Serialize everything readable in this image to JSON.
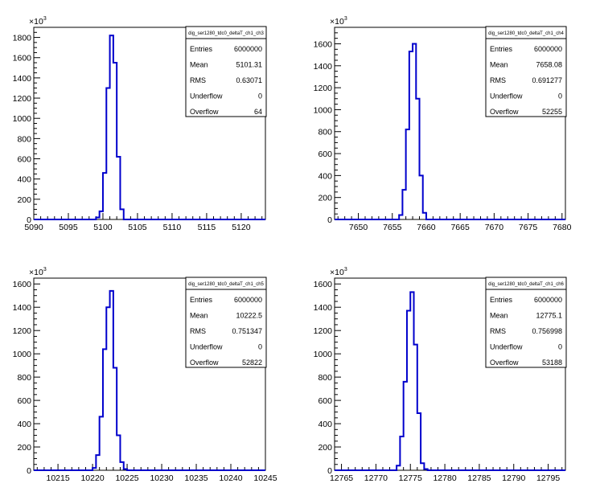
{
  "chart_data": [
    {
      "type": "histogram",
      "name": "dig_ser1280_tdc0_deltaT_ch1_ch3",
      "stats": {
        "Entries": "6000000",
        "Mean": "5101.31",
        "RMS": "0.63071",
        "Underflow": "0",
        "Overflow": "64"
      },
      "y_multiplier": "×10",
      "y_exponent": "3",
      "xlim": [
        5090,
        5123.5
      ],
      "ylim": [
        0,
        1900
      ],
      "x_ticks": [
        "5090",
        "5095",
        "5100",
        "5105",
        "5110",
        "5115",
        "5120"
      ],
      "y_ticks": [
        "0",
        "200",
        "400",
        "600",
        "800",
        "1000",
        "1200",
        "1400",
        "1600",
        "1800"
      ],
      "x": [
        5098,
        5099,
        5099.5,
        5100,
        5100.5,
        5101,
        5101.5,
        5102,
        5102.5,
        5103
      ],
      "values": [
        0,
        20,
        80,
        460,
        1300,
        1820,
        1550,
        620,
        100,
        0
      ]
    },
    {
      "type": "histogram",
      "name": "dig_ser1280_tdc0_deltaT_ch1_ch4",
      "stats": {
        "Entries": "6000000",
        "Mean": "7658.08",
        "RMS": "0.691277",
        "Underflow": "0",
        "Overflow": "52255"
      },
      "y_multiplier": "×10",
      "y_exponent": "3",
      "xlim": [
        7646.5,
        7680.5
      ],
      "ylim": [
        0,
        1750
      ],
      "x_ticks": [
        "7650",
        "7655",
        "7660",
        "7665",
        "7670",
        "7675",
        "7680"
      ],
      "y_ticks": [
        "0",
        "200",
        "400",
        "600",
        "800",
        "1000",
        "1200",
        "1400",
        "1600"
      ],
      "x": [
        7655,
        7656,
        7656.5,
        7657,
        7657.5,
        7658,
        7658.5,
        7659,
        7659.5,
        7660
      ],
      "values": [
        0,
        40,
        270,
        820,
        1530,
        1600,
        1100,
        400,
        60,
        0
      ]
    },
    {
      "type": "histogram",
      "name": "dig_ser1280_tdc0_deltaT_ch1_ch5",
      "stats": {
        "Entries": "6000000",
        "Mean": "10222.5",
        "RMS": "0.751347",
        "Underflow": "0",
        "Overflow": "52822"
      },
      "y_multiplier": "×10",
      "y_exponent": "3",
      "xlim": [
        10211.5,
        10245
      ],
      "ylim": [
        0,
        1650
      ],
      "x_ticks": [
        "10215",
        "10220",
        "10225",
        "10230",
        "10235",
        "10240",
        "10245"
      ],
      "y_ticks": [
        "0",
        "200",
        "400",
        "600",
        "800",
        "1000",
        "1200",
        "1400",
        "1600"
      ],
      "x": [
        10219,
        10220,
        10220.5,
        10221,
        10221.5,
        10222,
        10222.5,
        10223,
        10223.5,
        10224,
        10224.5,
        10225
      ],
      "values": [
        0,
        20,
        130,
        460,
        1040,
        1400,
        1540,
        880,
        300,
        70,
        10,
        0
      ]
    },
    {
      "type": "histogram",
      "name": "dig_ser1280_tdc0_deltaT_ch1_ch6",
      "stats": {
        "Entries": "6000000",
        "Mean": "12775.1",
        "RMS": "0.756998",
        "Underflow": "0",
        "Overflow": "53188"
      },
      "y_multiplier": "×10",
      "y_exponent": "3",
      "xlim": [
        12764,
        12797.5
      ],
      "ylim": [
        0,
        1650
      ],
      "x_ticks": [
        "12765",
        "12770",
        "12775",
        "12780",
        "12785",
        "12790",
        "12795"
      ],
      "y_ticks": [
        "0",
        "200",
        "400",
        "600",
        "800",
        "1000",
        "1200",
        "1400",
        "1600"
      ],
      "x": [
        12772,
        12773,
        12773.5,
        12774,
        12774.5,
        12775,
        12775.5,
        12776,
        12776.5,
        12777,
        12777.5,
        12778
      ],
      "values": [
        0,
        40,
        290,
        760,
        1370,
        1530,
        1080,
        490,
        60,
        10,
        0,
        0
      ]
    }
  ]
}
